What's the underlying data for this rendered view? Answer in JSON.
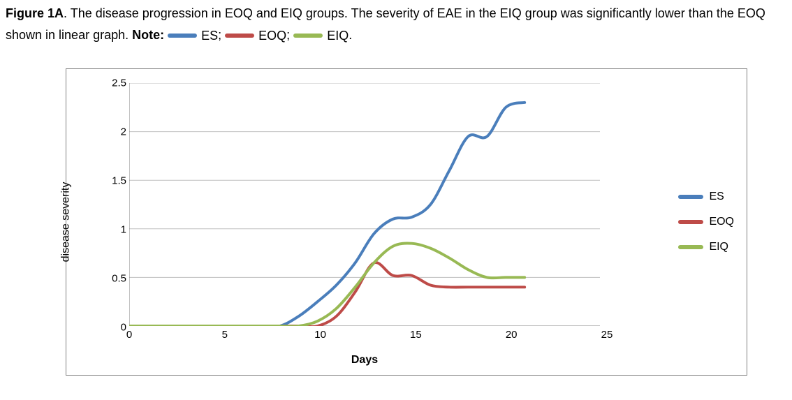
{
  "caption": {
    "figure_label": "Figure 1A",
    "text_1": ". The disease progression in EOQ and EIQ groups. The severity of EAE in the EIQ group was significantly lower than the EOQ shown in linear graph. ",
    "note_label": "Note:",
    "sep": "; ",
    "period": "."
  },
  "chart": {
    "type": "line",
    "xlabel": "Days",
    "ylabel": "disease severity",
    "xlim": [
      0,
      25
    ],
    "ylim": [
      0,
      2.5
    ],
    "xticks": [
      0,
      5,
      10,
      15,
      20,
      25
    ],
    "yticks": [
      0,
      0.5,
      1,
      1.5,
      2,
      2.5
    ],
    "xtick_labels": [
      "0",
      "5",
      "10",
      "15",
      "20",
      "25"
    ],
    "ytick_labels": [
      "0",
      "0.5",
      "1",
      "1.5",
      "2",
      "2.5"
    ],
    "background_color": "#ffffff",
    "grid_color": "#bfbfbf",
    "axis_color": "#808080",
    "border_color": "#808080",
    "line_width": 4,
    "label_fontsize": 16,
    "tick_fontsize": 15,
    "font_family": "Arial",
    "smoothing": true,
    "series": [
      {
        "name": "ES",
        "color": "#4a7ebb",
        "x": [
          0,
          1,
          2,
          3,
          4,
          5,
          6,
          7,
          8,
          9,
          10,
          11,
          12,
          13,
          14,
          15,
          16,
          17,
          18,
          19,
          20,
          21
        ],
        "y": [
          0,
          0,
          0,
          0,
          0,
          0,
          0,
          0,
          0,
          0.1,
          0.25,
          0.42,
          0.65,
          0.95,
          1.1,
          1.12,
          1.25,
          1.6,
          1.95,
          1.95,
          2.25,
          2.3
        ]
      },
      {
        "name": "EOQ",
        "color": "#be4b48",
        "x": [
          0,
          1,
          2,
          3,
          4,
          5,
          6,
          7,
          8,
          9,
          10,
          11,
          12,
          13,
          14,
          15,
          16,
          17,
          18,
          19,
          20,
          21
        ],
        "y": [
          0,
          0,
          0,
          0,
          0,
          0,
          0,
          0,
          0,
          0,
          0,
          0.1,
          0.35,
          0.65,
          0.52,
          0.52,
          0.42,
          0.4,
          0.4,
          0.4,
          0.4,
          0.4
        ]
      },
      {
        "name": "EIQ",
        "color": "#98b954",
        "x": [
          0,
          1,
          2,
          3,
          4,
          5,
          6,
          7,
          8,
          9,
          10,
          11,
          12,
          13,
          14,
          15,
          16,
          17,
          18,
          19,
          20,
          21
        ],
        "y": [
          0,
          0,
          0,
          0,
          0,
          0,
          0,
          0,
          0,
          0,
          0.05,
          0.18,
          0.4,
          0.65,
          0.82,
          0.85,
          0.8,
          0.7,
          0.58,
          0.5,
          0.5,
          0.5
        ]
      }
    ],
    "legend": {
      "position": "right",
      "items": [
        "ES",
        "EOQ",
        "EIQ"
      ]
    }
  }
}
